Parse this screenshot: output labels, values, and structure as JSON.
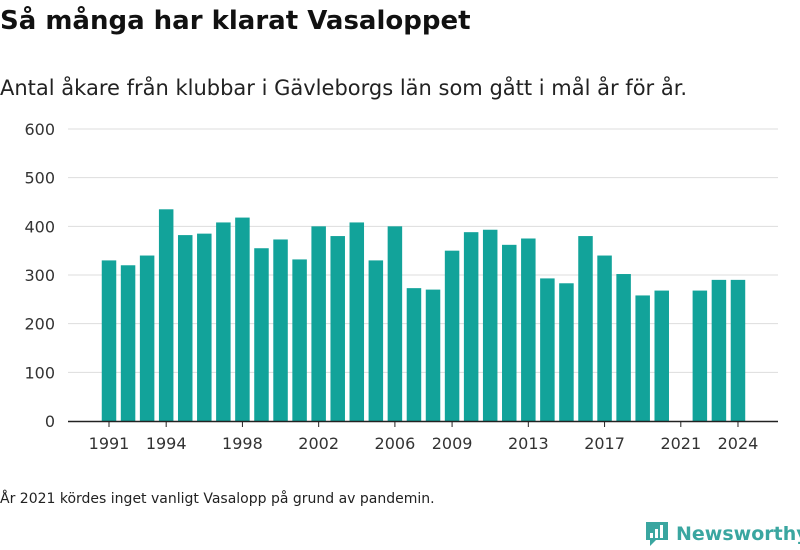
{
  "header": {
    "title": "Så många har klarat Vasaloppet",
    "subtitle": "Antal åkare från klubbar i Gävleborgs län som gått i mål år för år."
  },
  "footer": {
    "note": "År 2021 kördes inget vanligt Vasalopp på grund av pandemin.",
    "brand": "Newsworthy"
  },
  "chart_data": {
    "type": "bar",
    "grid": true,
    "ylim": [
      0,
      600
    ],
    "yticks": [
      0,
      100,
      200,
      300,
      400,
      500,
      600
    ],
    "xticks": [
      1991,
      1994,
      1998,
      2002,
      2006,
      2009,
      2013,
      2017,
      2021,
      2024
    ],
    "bar_color": "#12a39a",
    "categories": [
      1991,
      1992,
      1993,
      1994,
      1995,
      1996,
      1997,
      1998,
      1999,
      2000,
      2001,
      2002,
      2003,
      2004,
      2005,
      2006,
      2007,
      2008,
      2009,
      2010,
      2011,
      2012,
      2013,
      2014,
      2015,
      2016,
      2017,
      2018,
      2019,
      2020,
      2021,
      2022,
      2023,
      2024
    ],
    "values": [
      330,
      320,
      340,
      435,
      382,
      385,
      408,
      418,
      355,
      373,
      332,
      400,
      380,
      408,
      330,
      400,
      273,
      270,
      350,
      388,
      393,
      362,
      375,
      293,
      283,
      380,
      340,
      302,
      258,
      268,
      null,
      268,
      290,
      290
    ]
  }
}
